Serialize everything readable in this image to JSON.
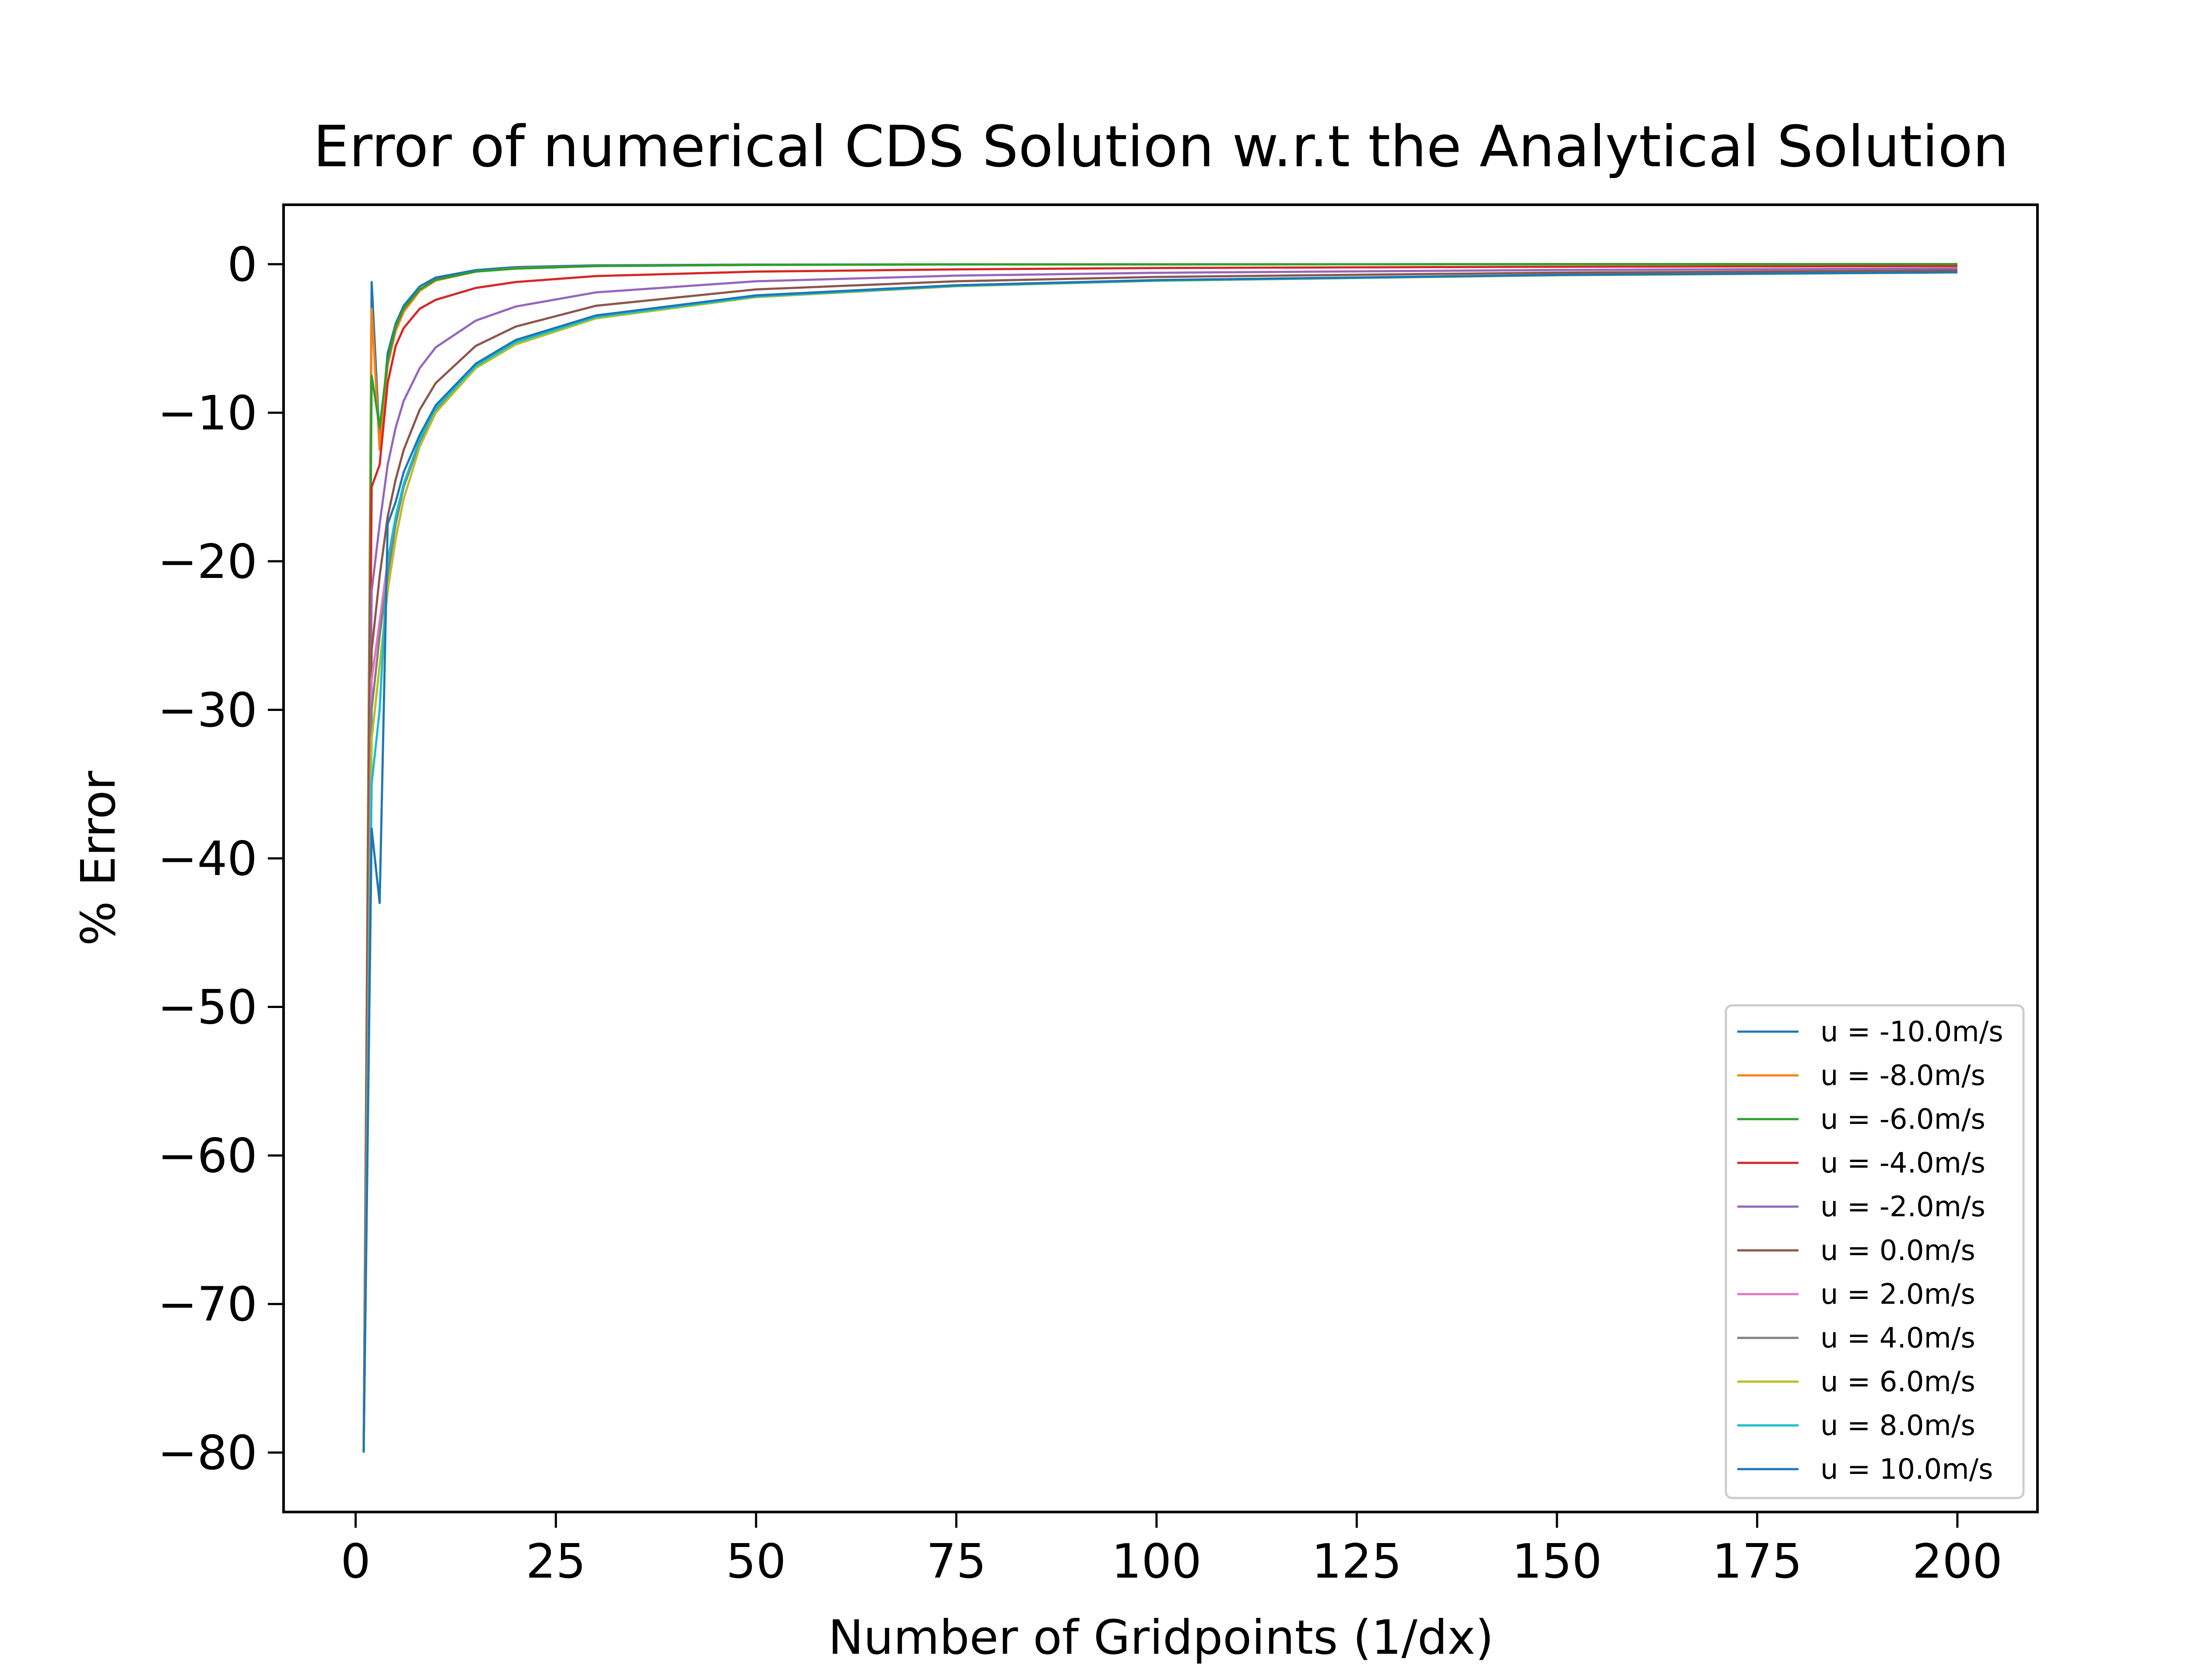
{
  "chart_data": {
    "type": "line",
    "title": "Error of numerical CDS Solution w.r.t the Analytical Solution",
    "xlabel": "Number of Gridpoints (1/dx)",
    "ylabel": "% Error",
    "xlim": [
      -9,
      210
    ],
    "ylim": [
      -84,
      4
    ],
    "xticks": [
      0,
      25,
      50,
      75,
      100,
      125,
      150,
      175,
      200
    ],
    "yticks": [
      0,
      -10,
      -20,
      -30,
      -40,
      -50,
      -60,
      -70,
      -80
    ],
    "xtick_labels": [
      "0",
      "25",
      "50",
      "75",
      "100",
      "125",
      "150",
      "175",
      "200"
    ],
    "ytick_labels": [
      "0",
      "−10",
      "−20",
      "−30",
      "−40",
      "−50",
      "−60",
      "−70",
      "−80"
    ],
    "grid": false,
    "legend_position": "lower right",
    "series": [
      {
        "name": "u = -10.0m/s",
        "color": "#1f77b4",
        "x": [
          1,
          2,
          3,
          4,
          5,
          6,
          8,
          10,
          15,
          20,
          30,
          50,
          75,
          100,
          150,
          200
        ],
        "y": [
          -80,
          -1.2,
          -12,
          -6,
          -4,
          -2.8,
          -1.5,
          -0.9,
          -0.4,
          -0.2,
          -0.08,
          -0.03,
          -0.01,
          -0.01,
          0,
          0
        ]
      },
      {
        "name": "u = -8.0m/s",
        "color": "#ff7f0e",
        "x": [
          1,
          2,
          3,
          4,
          5,
          6,
          8,
          10,
          15,
          20,
          30,
          50,
          75,
          100,
          150,
          200
        ],
        "y": [
          -80,
          -3,
          -12.5,
          -6.8,
          -4.5,
          -3.2,
          -1.8,
          -1.1,
          -0.5,
          -0.28,
          -0.12,
          -0.04,
          -0.02,
          -0.01,
          0,
          0
        ]
      },
      {
        "name": "u = -6.0m/s",
        "color": "#2ca02c",
        "x": [
          1,
          2,
          3,
          4,
          5,
          6,
          8,
          10,
          15,
          20,
          30,
          50,
          75,
          100,
          150,
          200
        ],
        "y": [
          -80,
          -7.5,
          -11,
          -6.5,
          -4.2,
          -3,
          -1.7,
          -1.05,
          -0.5,
          -0.3,
          -0.13,
          -0.05,
          -0.02,
          -0.01,
          0,
          0
        ]
      },
      {
        "name": "u = -4.0m/s",
        "color": "#d62728",
        "x": [
          1,
          2,
          3,
          4,
          5,
          6,
          8,
          10,
          15,
          20,
          30,
          50,
          75,
          100,
          150,
          200
        ],
        "y": [
          -80,
          -15,
          -13.5,
          -8,
          -5.5,
          -4.3,
          -3,
          -2.4,
          -1.6,
          -1.2,
          -0.8,
          -0.5,
          -0.35,
          -0.26,
          -0.17,
          -0.13
        ]
      },
      {
        "name": "u = -2.0m/s",
        "color": "#9467bd",
        "x": [
          1,
          2,
          3,
          4,
          5,
          6,
          8,
          10,
          15,
          20,
          30,
          50,
          75,
          100,
          150,
          200
        ],
        "y": [
          -80,
          -22,
          -17.5,
          -13.5,
          -11,
          -9.2,
          -7,
          -5.6,
          -3.8,
          -2.85,
          -1.9,
          -1.15,
          -0.77,
          -0.58,
          -0.39,
          -0.29
        ]
      },
      {
        "name": "u = 0.0m/s",
        "color": "#8c564b",
        "x": [
          1,
          2,
          3,
          4,
          5,
          6,
          8,
          10,
          15,
          20,
          30,
          50,
          75,
          100,
          150,
          200
        ],
        "y": [
          -80,
          -26,
          -21,
          -17,
          -14.5,
          -12.5,
          -9.8,
          -8,
          -5.5,
          -4.2,
          -2.8,
          -1.7,
          -1.15,
          -0.86,
          -0.57,
          -0.43
        ]
      },
      {
        "name": "u = 2.0m/s",
        "color": "#e377c2",
        "x": [
          1,
          2,
          3,
          4,
          5,
          6,
          8,
          10,
          15,
          20,
          30,
          50,
          75,
          100,
          150,
          200
        ],
        "y": [
          -80,
          -28,
          -24,
          -20,
          -17,
          -14.8,
          -11.8,
          -9.7,
          -6.8,
          -5.2,
          -3.5,
          -2.15,
          -1.45,
          -1.09,
          -0.73,
          -0.55
        ]
      },
      {
        "name": "u = 4.0m/s",
        "color": "#7f7f7f",
        "x": [
          1,
          2,
          3,
          4,
          5,
          6,
          8,
          10,
          15,
          20,
          30,
          50,
          75,
          100,
          150,
          200
        ],
        "y": [
          -80,
          -30,
          -25,
          -21,
          -17.5,
          -15,
          -12,
          -9.8,
          -6.9,
          -5.3,
          -3.6,
          -2.2,
          -1.48,
          -1.11,
          -0.74,
          -0.56
        ]
      },
      {
        "name": "u = 6.0m/s",
        "color": "#bcbd22",
        "x": [
          1,
          2,
          3,
          4,
          5,
          6,
          8,
          10,
          15,
          20,
          30,
          50,
          75,
          100,
          150,
          200
        ],
        "y": [
          -80,
          -32,
          -27,
          -22,
          -18.5,
          -15.8,
          -12.3,
          -10,
          -7,
          -5.4,
          -3.65,
          -2.22,
          -1.49,
          -1.12,
          -0.75,
          -0.56
        ]
      },
      {
        "name": "u = 8.0m/s",
        "color": "#17becf",
        "x": [
          1,
          2,
          3,
          4,
          5,
          6,
          8,
          10,
          15,
          20,
          30,
          50,
          75,
          100,
          150,
          200
        ],
        "y": [
          -80,
          -35,
          -30,
          -20,
          -17,
          -14.8,
          -11.8,
          -9.7,
          -6.85,
          -5.25,
          -3.55,
          -2.17,
          -1.46,
          -1.1,
          -0.73,
          -0.55
        ]
      },
      {
        "name": "u = 10.0m/s",
        "color": "#1f77b4",
        "x": [
          1,
          2,
          3,
          4,
          5,
          6,
          8,
          10,
          15,
          20,
          30,
          50,
          75,
          100,
          150,
          200
        ],
        "y": [
          -80,
          -38,
          -43,
          -17.5,
          -16,
          -14,
          -11.5,
          -9.5,
          -6.7,
          -5.1,
          -3.45,
          -2.1,
          -1.42,
          -1.07,
          -0.72,
          -0.54
        ]
      }
    ]
  }
}
